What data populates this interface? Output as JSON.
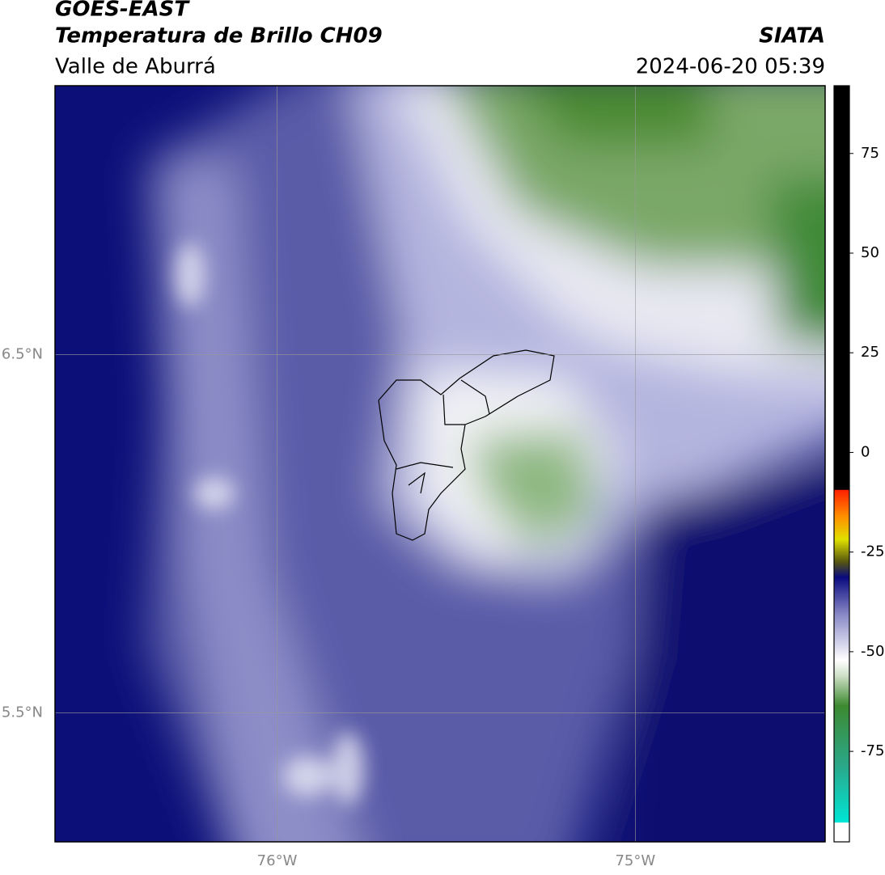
{
  "header": {
    "title": "GOES-EAST",
    "subtitle": "Temperatura de Brillo CH09",
    "region": "Valle de Aburrá",
    "source": "SIATA",
    "datetime": "2024-06-20 05:39"
  },
  "map": {
    "xlim": [
      -76.62,
      -74.47
    ],
    "ylim": [
      5.14,
      7.25
    ],
    "xticks": [
      {
        "value": -76,
        "label": "76°W"
      },
      {
        "value": -75,
        "label": "75°W"
      }
    ],
    "yticks": [
      {
        "value": 6.5,
        "label": "6.5°N"
      },
      {
        "value": 5.5,
        "label": "5.5°N"
      }
    ],
    "grid": true
  },
  "colorbar": {
    "lim": [
      -97.7,
      92
    ],
    "ticks": [
      75,
      50,
      25,
      0,
      -25,
      -50,
      -75
    ]
  }
}
